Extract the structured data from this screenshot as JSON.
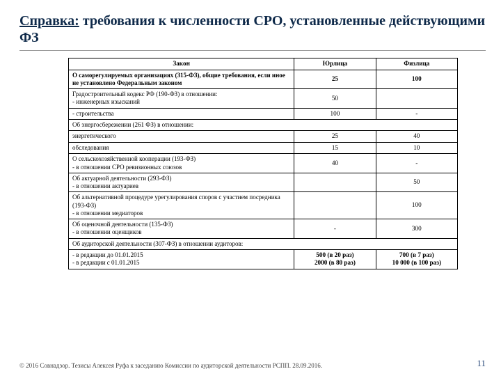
{
  "title_prefix": "Справка:",
  "title_rest": " требования к численности СРО, установленные действующими ФЗ",
  "headers": {
    "law": "Закон",
    "yur": "Юрлица",
    "fiz": "Физлица"
  },
  "rows": [
    {
      "desc": "О саморегулируемых организациях (315-ФЗ), общие требования, если иное не установлено Федеральным законом",
      "yur": "25",
      "fiz": "100",
      "bold": true
    },
    {
      "desc": "Градостроительный кодекс РФ (190-ФЗ) в отношении:\n- инженерных изысканий",
      "yur": "50",
      "fiz": ""
    },
    {
      "desc": "- строительства",
      "yur": "100",
      "fiz": "-"
    },
    {
      "desc": "Об энергосбережении (261 ФЗ) в отношении:",
      "yur": "",
      "fiz": "",
      "headerOnly": true
    },
    {
      "desc": "энергетического",
      "yur": "25",
      "fiz": "40"
    },
    {
      "desc": "обследования",
      "yur": "15",
      "fiz": "10"
    },
    {
      "desc": "О сельскохозяйственной кооперации (193-ФЗ)\n- в отношении СРО ревизионных союзов",
      "yur": "40",
      "fiz": "-"
    },
    {
      "desc": "Об актуарной деятельности (293-ФЗ)\n- в отношении актуариев",
      "yur": "",
      "fiz": "50"
    },
    {
      "desc": "Об альтернативной процедуре урегулирования споров с участием посредника (193-ФЗ)\n- в отношении медиаторов",
      "yur": "",
      "fiz": "100"
    },
    {
      "desc": "Об оценочной деятельности (135-ФЗ)\n- в отношении оценщиков",
      "yur": "-",
      "fiz": "300"
    },
    {
      "desc": "Об аудиторской деятельности (307-ФЗ) в отношении аудиторов:",
      "yur": "",
      "fiz": "",
      "headerOnly": true
    }
  ],
  "lastRow": {
    "line1": "- в редакции до 01.01.2015",
    "line2": "- в редакции с 01.01.2015",
    "yur1": "500 (в 20 раз)",
    "yur2": "2000 (в 80 раз)",
    "fiz1": "700 (в 7 раз)",
    "fiz2": "10 000 (в 100 раз)"
  },
  "footer": "© 2016 Совнадзор. Тезисы Алексея Руфа к заседанию Комиссии по аудиторской деятельности РСПП. 28.09.2016.",
  "page": "11"
}
